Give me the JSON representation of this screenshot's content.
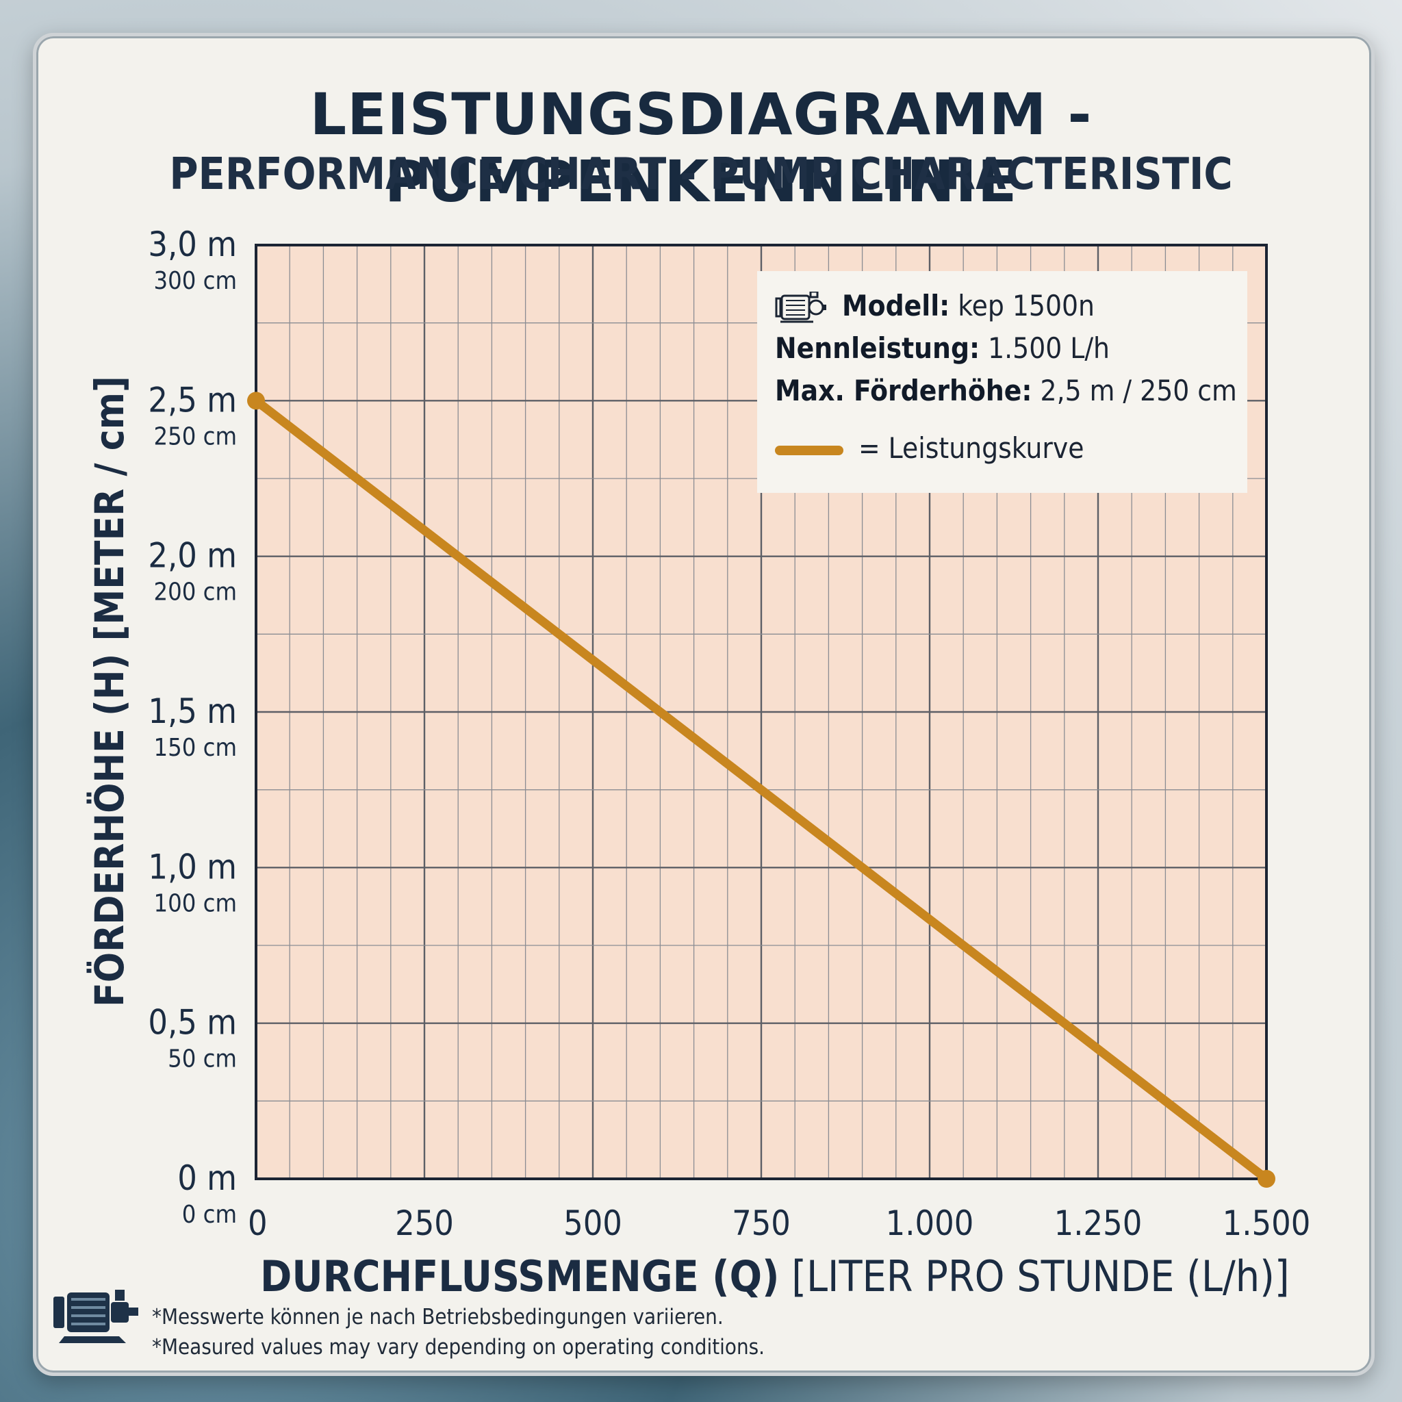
{
  "title": "LEISTUNGSDIAGRAMM - PUMPENKENNLINIE",
  "subtitle": "PERFORMANCE CHART - PUMP CHARACTERISTIC",
  "legend": {
    "model_label": "Modell:",
    "model_value": "kep 1500n",
    "rated_label": "Nennleistung:",
    "rated_value": "1.500 L/h",
    "head_label": "Max. Förderhöhe:",
    "head_value": "2,5 m / 250 cm",
    "curve_label": "= Leistungskurve"
  },
  "footnote": {
    "de": "*Messwerte können je nach Betriebsbedingungen variieren.",
    "en": "*Measured values may vary depending on operating conditions."
  },
  "colors": {
    "curve": "#c8861f",
    "plot_bg": "#f8dfcf",
    "grid_major": "#5d5f66",
    "grid_minor": "#8b8d93",
    "text": "#1b2c42"
  },
  "icons": [
    "motor-icon",
    "pump-icon"
  ],
  "chart_data": {
    "type": "line",
    "title": "LEISTUNGSDIAGRAMM - PUMPENKENNLINIE",
    "subtitle": "PERFORMANCE CHART - PUMP CHARACTERISTIC",
    "xlabel_bold": "DURCHFLUSSMENGE (Q)",
    "xlabel_rest": "[LITER PRO STUNDE (L/h)]",
    "ylabel": "FÖRDERHÖHE (H) [METER / cm]",
    "xlim": [
      0,
      1500
    ],
    "ylim": [
      0,
      3
    ],
    "x_ticks": [
      {
        "value": 0,
        "label": "0"
      },
      {
        "value": 250,
        "label": "250"
      },
      {
        "value": 500,
        "label": "500"
      },
      {
        "value": 750,
        "label": "750"
      },
      {
        "value": 1000,
        "label": "1.000"
      },
      {
        "value": 1250,
        "label": "1.250"
      },
      {
        "value": 1500,
        "label": "1.500"
      }
    ],
    "y_ticks": [
      {
        "value": 0,
        "label": "0 m",
        "sublabel": "0 cm"
      },
      {
        "value": 0.5,
        "label": "0,5 m",
        "sublabel": "50 cm"
      },
      {
        "value": 1.0,
        "label": "1,0 m",
        "sublabel": "100 cm"
      },
      {
        "value": 1.5,
        "label": "1,5 m",
        "sublabel": "150 cm"
      },
      {
        "value": 2.0,
        "label": "2,0 m",
        "sublabel": "200 cm"
      },
      {
        "value": 2.5,
        "label": "2,5 m",
        "sublabel": "250 cm"
      },
      {
        "value": 3.0,
        "label": "3,0 m",
        "sublabel": "300 cm"
      }
    ],
    "grid": true,
    "legend_position": "top-right",
    "series": [
      {
        "name": "Leistungskurve",
        "x": [
          0,
          1500
        ],
        "y": [
          2.5,
          0
        ]
      }
    ]
  }
}
